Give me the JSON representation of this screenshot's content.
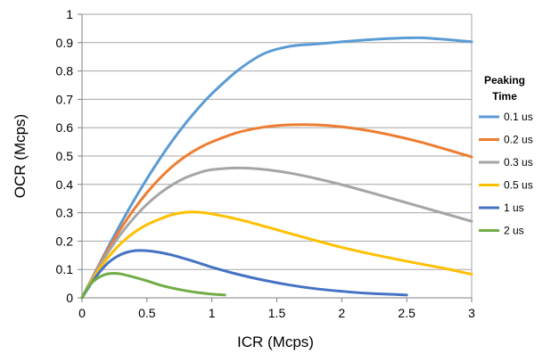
{
  "chart_data": {
    "type": "line",
    "title": "",
    "xlabel": "ICR  (Mcps)",
    "ylabel": "OCR  (Mcps)",
    "xlim": [
      0,
      3
    ],
    "ylim": [
      0,
      1
    ],
    "xticks": [
      0,
      0.5,
      1,
      1.5,
      2,
      2.5,
      3
    ],
    "xtick_labels": [
      "0",
      "0.5",
      "1",
      "1.5",
      "2",
      "2.5",
      "3"
    ],
    "yticks": [
      0,
      0.1,
      0.2,
      0.3,
      0.4,
      0.5,
      0.6,
      0.7,
      0.8,
      0.9,
      1
    ],
    "ytick_labels": [
      "0",
      "0.1",
      "0.2",
      "0.3",
      "0.4",
      "0.5",
      "0.6",
      "0.7",
      "0.8",
      "0.9",
      "1"
    ],
    "grid": "horizontal",
    "legend": {
      "title_lines": [
        "Peaking",
        "Time"
      ],
      "placement": "right"
    },
    "series": [
      {
        "name": "0.1 us",
        "color": "#5b9bd5",
        "points": [
          [
            0,
            0
          ],
          [
            0.1,
            0.09
          ],
          [
            0.2,
            0.178
          ],
          [
            0.3,
            0.263
          ],
          [
            0.4,
            0.344
          ],
          [
            0.5,
            0.42
          ],
          [
            0.6,
            0.491
          ],
          [
            0.7,
            0.557
          ],
          [
            0.8,
            0.617
          ],
          [
            0.9,
            0.671
          ],
          [
            1.0,
            0.72
          ],
          [
            1.2,
            0.802
          ],
          [
            1.4,
            0.861
          ],
          [
            1.6,
            0.887
          ],
          [
            1.8,
            0.895
          ],
          [
            2.0,
            0.903
          ],
          [
            2.2,
            0.91
          ],
          [
            2.4,
            0.915
          ],
          [
            2.6,
            0.917
          ],
          [
            2.8,
            0.911
          ],
          [
            3.0,
            0.903
          ]
        ]
      },
      {
        "name": "0.2 us",
        "color": "#ed7d31",
        "points": [
          [
            0,
            0
          ],
          [
            0.1,
            0.088
          ],
          [
            0.2,
            0.17
          ],
          [
            0.3,
            0.245
          ],
          [
            0.4,
            0.312
          ],
          [
            0.5,
            0.371
          ],
          [
            0.6,
            0.422
          ],
          [
            0.7,
            0.465
          ],
          [
            0.8,
            0.5
          ],
          [
            0.9,
            0.528
          ],
          [
            1.0,
            0.55
          ],
          [
            1.2,
            0.583
          ],
          [
            1.4,
            0.602
          ],
          [
            1.6,
            0.61
          ],
          [
            1.8,
            0.61
          ],
          [
            2.0,
            0.603
          ],
          [
            2.2,
            0.59
          ],
          [
            2.4,
            0.572
          ],
          [
            2.6,
            0.55
          ],
          [
            2.8,
            0.524
          ],
          [
            3.0,
            0.497
          ]
        ]
      },
      {
        "name": "0.3 us",
        "color": "#a5a5a5",
        "points": [
          [
            0,
            0
          ],
          [
            0.1,
            0.085
          ],
          [
            0.2,
            0.16
          ],
          [
            0.3,
            0.226
          ],
          [
            0.4,
            0.282
          ],
          [
            0.5,
            0.33
          ],
          [
            0.6,
            0.369
          ],
          [
            0.7,
            0.4
          ],
          [
            0.8,
            0.424
          ],
          [
            0.9,
            0.441
          ],
          [
            1.0,
            0.452
          ],
          [
            1.2,
            0.458
          ],
          [
            1.4,
            0.453
          ],
          [
            1.6,
            0.44
          ],
          [
            1.8,
            0.421
          ],
          [
            2.0,
            0.399
          ],
          [
            2.2,
            0.374
          ],
          [
            2.4,
            0.348
          ],
          [
            2.6,
            0.322
          ],
          [
            2.8,
            0.296
          ],
          [
            3.0,
            0.27
          ]
        ]
      },
      {
        "name": "0.5 us",
        "color": "#ffc000",
        "points": [
          [
            0,
            0
          ],
          [
            0.1,
            0.078
          ],
          [
            0.2,
            0.142
          ],
          [
            0.3,
            0.192
          ],
          [
            0.4,
            0.23
          ],
          [
            0.5,
            0.258
          ],
          [
            0.6,
            0.278
          ],
          [
            0.7,
            0.294
          ],
          [
            0.8,
            0.302
          ],
          [
            0.9,
            0.302
          ],
          [
            1.0,
            0.296
          ],
          [
            1.2,
            0.277
          ],
          [
            1.4,
            0.253
          ],
          [
            1.6,
            0.227
          ],
          [
            1.8,
            0.202
          ],
          [
            2.0,
            0.178
          ],
          [
            2.2,
            0.157
          ],
          [
            2.4,
            0.138
          ],
          [
            2.6,
            0.12
          ],
          [
            2.8,
            0.103
          ],
          [
            3.0,
            0.083
          ]
        ]
      },
      {
        "name": "1 us",
        "color": "#4472c4",
        "points": [
          [
            0,
            0
          ],
          [
            0.1,
            0.07
          ],
          [
            0.2,
            0.123
          ],
          [
            0.3,
            0.153
          ],
          [
            0.4,
            0.166
          ],
          [
            0.5,
            0.166
          ],
          [
            0.6,
            0.16
          ],
          [
            0.7,
            0.15
          ],
          [
            0.8,
            0.137
          ],
          [
            0.9,
            0.123
          ],
          [
            1.0,
            0.108
          ],
          [
            1.2,
            0.083
          ],
          [
            1.4,
            0.062
          ],
          [
            1.6,
            0.045
          ],
          [
            1.8,
            0.032
          ],
          [
            2.0,
            0.023
          ],
          [
            2.2,
            0.016
          ],
          [
            2.4,
            0.012
          ],
          [
            2.5,
            0.01
          ]
        ]
      },
      {
        "name": "2 us",
        "color": "#70ad47",
        "points": [
          [
            0,
            0
          ],
          [
            0.05,
            0.04
          ],
          [
            0.1,
            0.063
          ],
          [
            0.15,
            0.077
          ],
          [
            0.2,
            0.085
          ],
          [
            0.25,
            0.086
          ],
          [
            0.3,
            0.084
          ],
          [
            0.4,
            0.073
          ],
          [
            0.5,
            0.06
          ],
          [
            0.6,
            0.045
          ],
          [
            0.7,
            0.034
          ],
          [
            0.8,
            0.025
          ],
          [
            0.9,
            0.018
          ],
          [
            1.0,
            0.013
          ],
          [
            1.1,
            0.01
          ]
        ]
      }
    ]
  }
}
